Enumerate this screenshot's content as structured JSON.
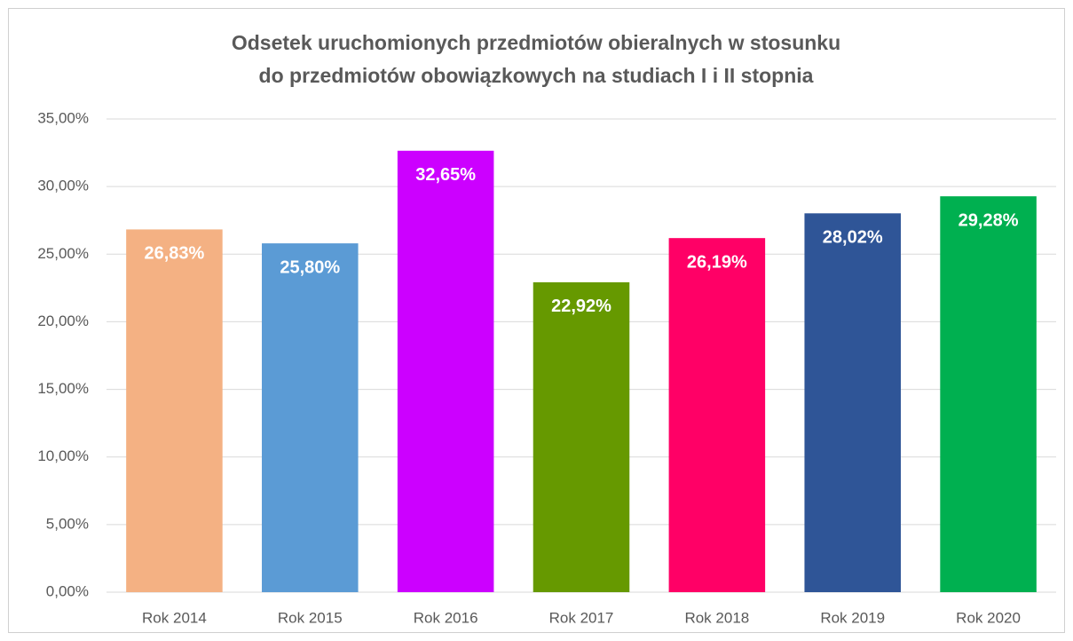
{
  "chart_data": {
    "type": "bar",
    "title": [
      "Odsetek uruchomionych przedmiotów obieralnych w stosunku",
      "do przedmiotów obowiązkowych na studiach I i II stopnia"
    ],
    "categories": [
      "Rok 2014",
      "Rok 2015",
      "Rok 2016",
      "Rok 2017",
      "Rok 2018",
      "Rok 2019",
      "Rok 2020"
    ],
    "values": [
      26.83,
      25.8,
      32.65,
      22.92,
      26.19,
      28.02,
      29.28
    ],
    "value_labels": [
      "26,83%",
      "25,80%",
      "32,65%",
      "22,92%",
      "26,19%",
      "28,02%",
      "29,28%"
    ],
    "colors": [
      "#f4b183",
      "#5b9bd5",
      "#cc00ff",
      "#669900",
      "#ff0066",
      "#2f5597",
      "#00b050"
    ],
    "ylim": [
      0,
      35
    ],
    "yticks": [
      {
        "value": 0,
        "label": "0,00%"
      },
      {
        "value": 5,
        "label": "5,00%"
      },
      {
        "value": 10,
        "label": "10,00%"
      },
      {
        "value": 15,
        "label": "15,00%"
      },
      {
        "value": 20,
        "label": "20,00%"
      },
      {
        "value": 25,
        "label": "25,00%"
      },
      {
        "value": 30,
        "label": "30,00%"
      },
      {
        "value": 35,
        "label": "35,00%"
      }
    ],
    "grid": true
  }
}
